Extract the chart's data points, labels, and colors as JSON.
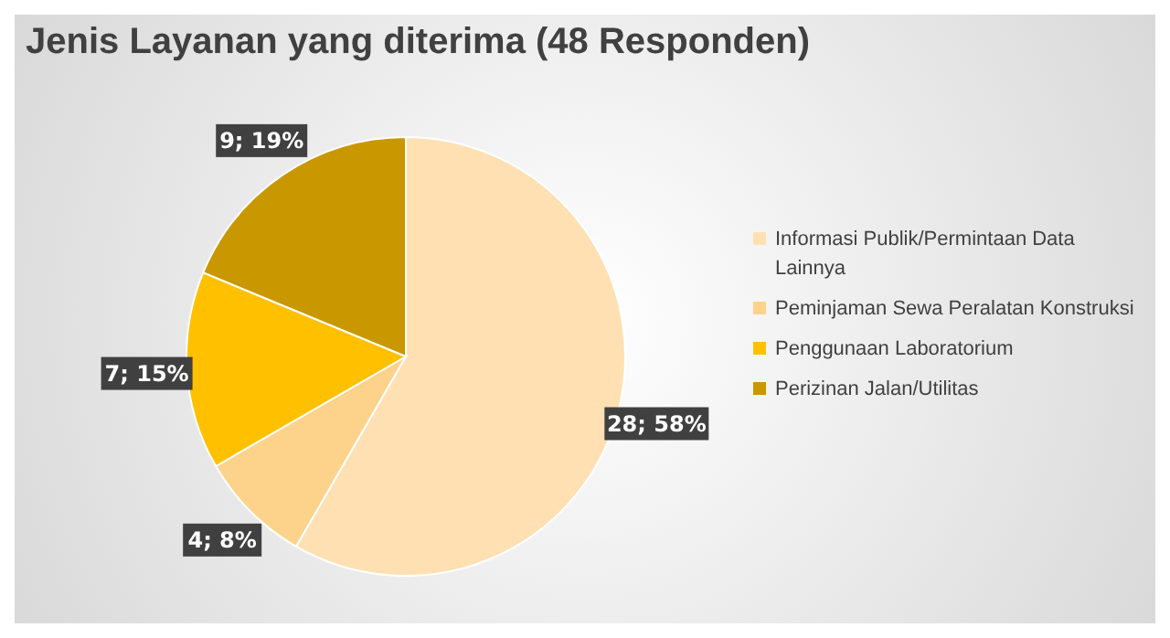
{
  "chart_data": {
    "type": "pie",
    "title": "Jenis Layanan yang diterima (48 Responden)",
    "categories": [
      "Informasi Publik/Permintaan Data Lainnya",
      "Peminjaman Sewa Peralatan Konstruksi",
      "Penggunaan Laboratorium",
      "Perizinan Jalan/Utilitas"
    ],
    "values": [
      28,
      4,
      7,
      9
    ],
    "colors": [
      "#ffe0b2",
      "#fdd28a",
      "#ffc000",
      "#c99700"
    ],
    "value_labels": [
      "28; 58%",
      "4; 8%",
      "7; 15%",
      "9; 19%"
    ],
    "legend": "right"
  }
}
